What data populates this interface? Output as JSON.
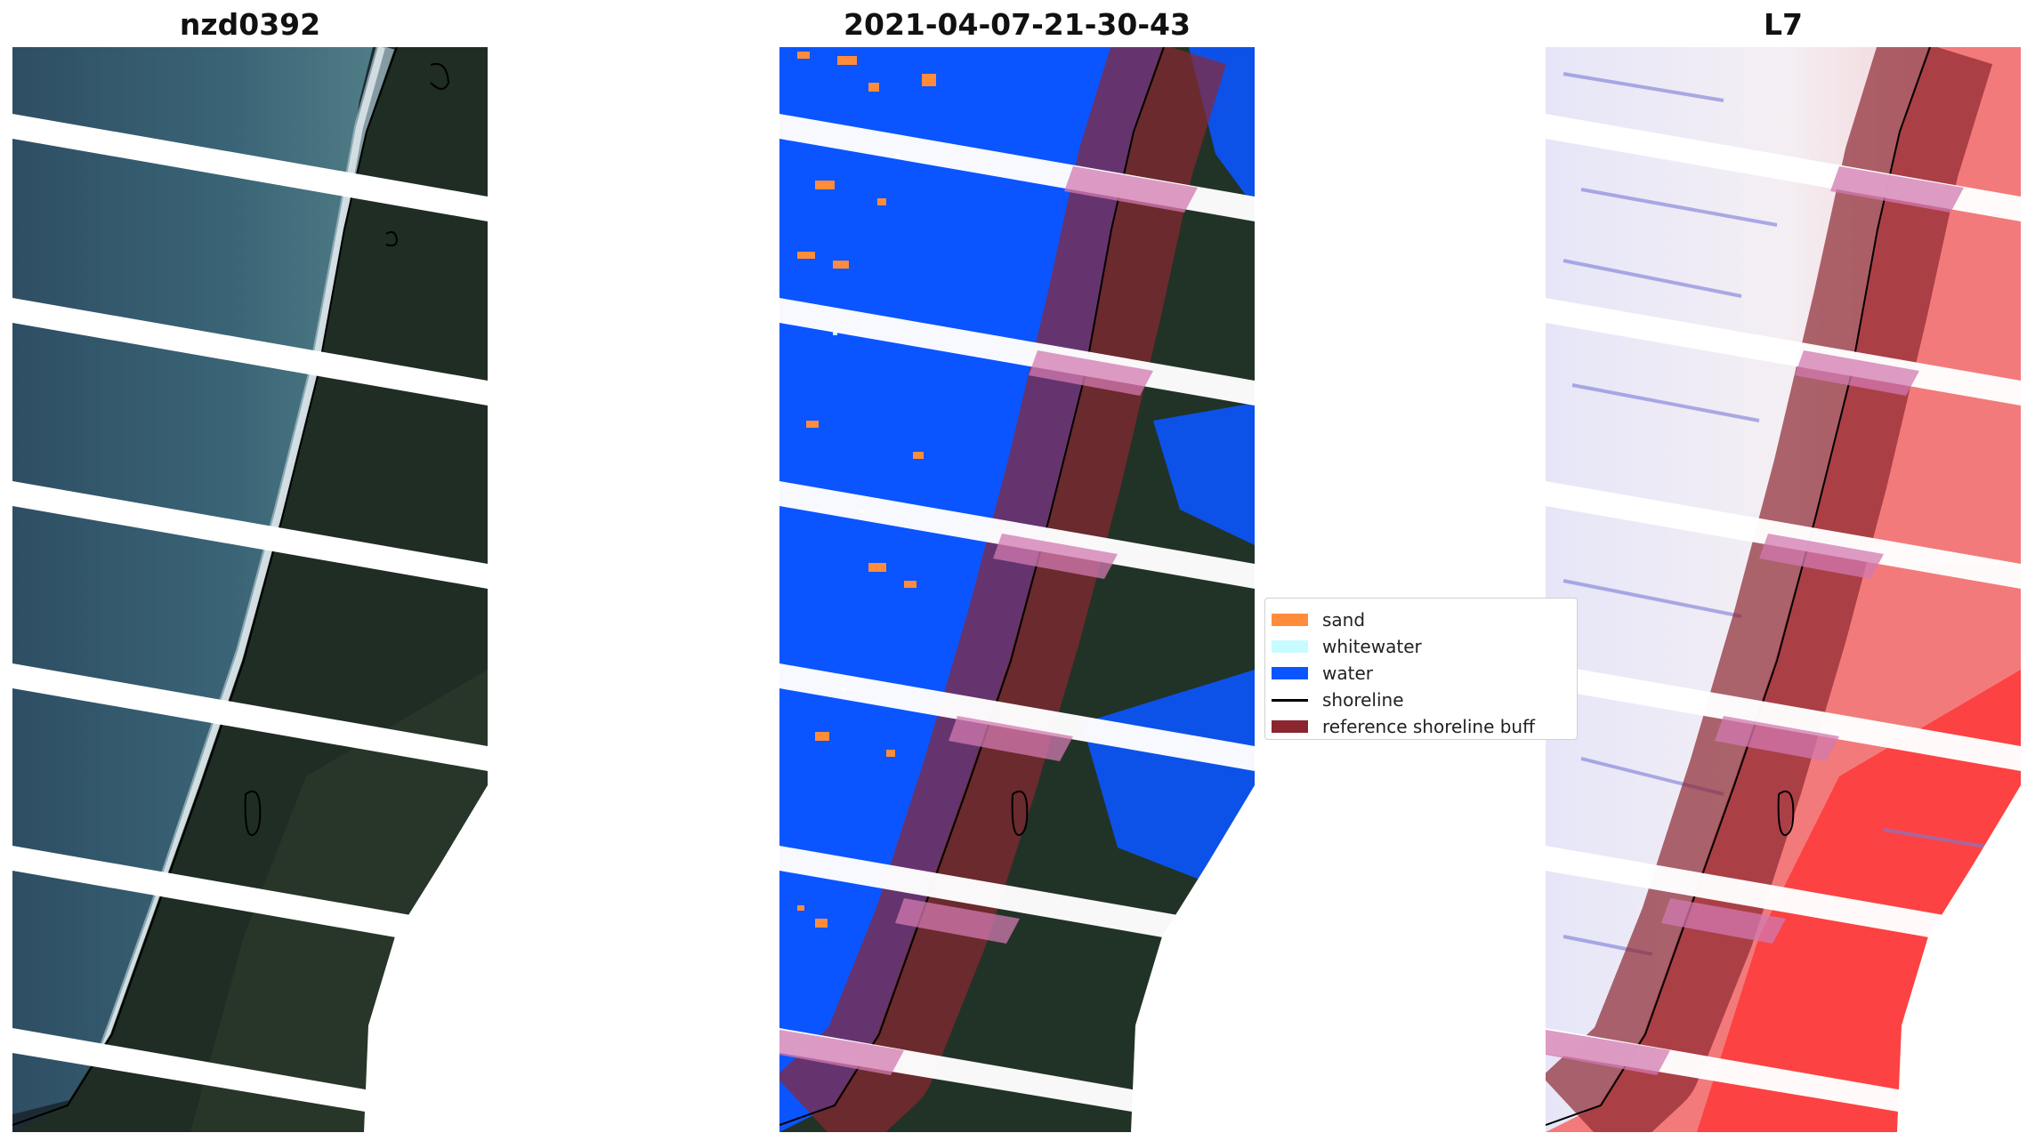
{
  "panels": [
    {
      "title": "nzd0392"
    },
    {
      "title": "2021-04-07-21-30-43"
    },
    {
      "title": "L7"
    }
  ],
  "legend": {
    "items": [
      {
        "label": "sand",
        "kind": "patch",
        "color": "#ff8c3a"
      },
      {
        "label": "whitewater",
        "kind": "patch",
        "color": "#c8fbff"
      },
      {
        "label": "water",
        "kind": "patch",
        "color": "#0a55ff"
      },
      {
        "label": "shoreline",
        "kind": "line",
        "color": "#000000"
      },
      {
        "label": "reference shoreline buff",
        "kind": "patch",
        "color": "#8b2630"
      }
    ]
  }
}
